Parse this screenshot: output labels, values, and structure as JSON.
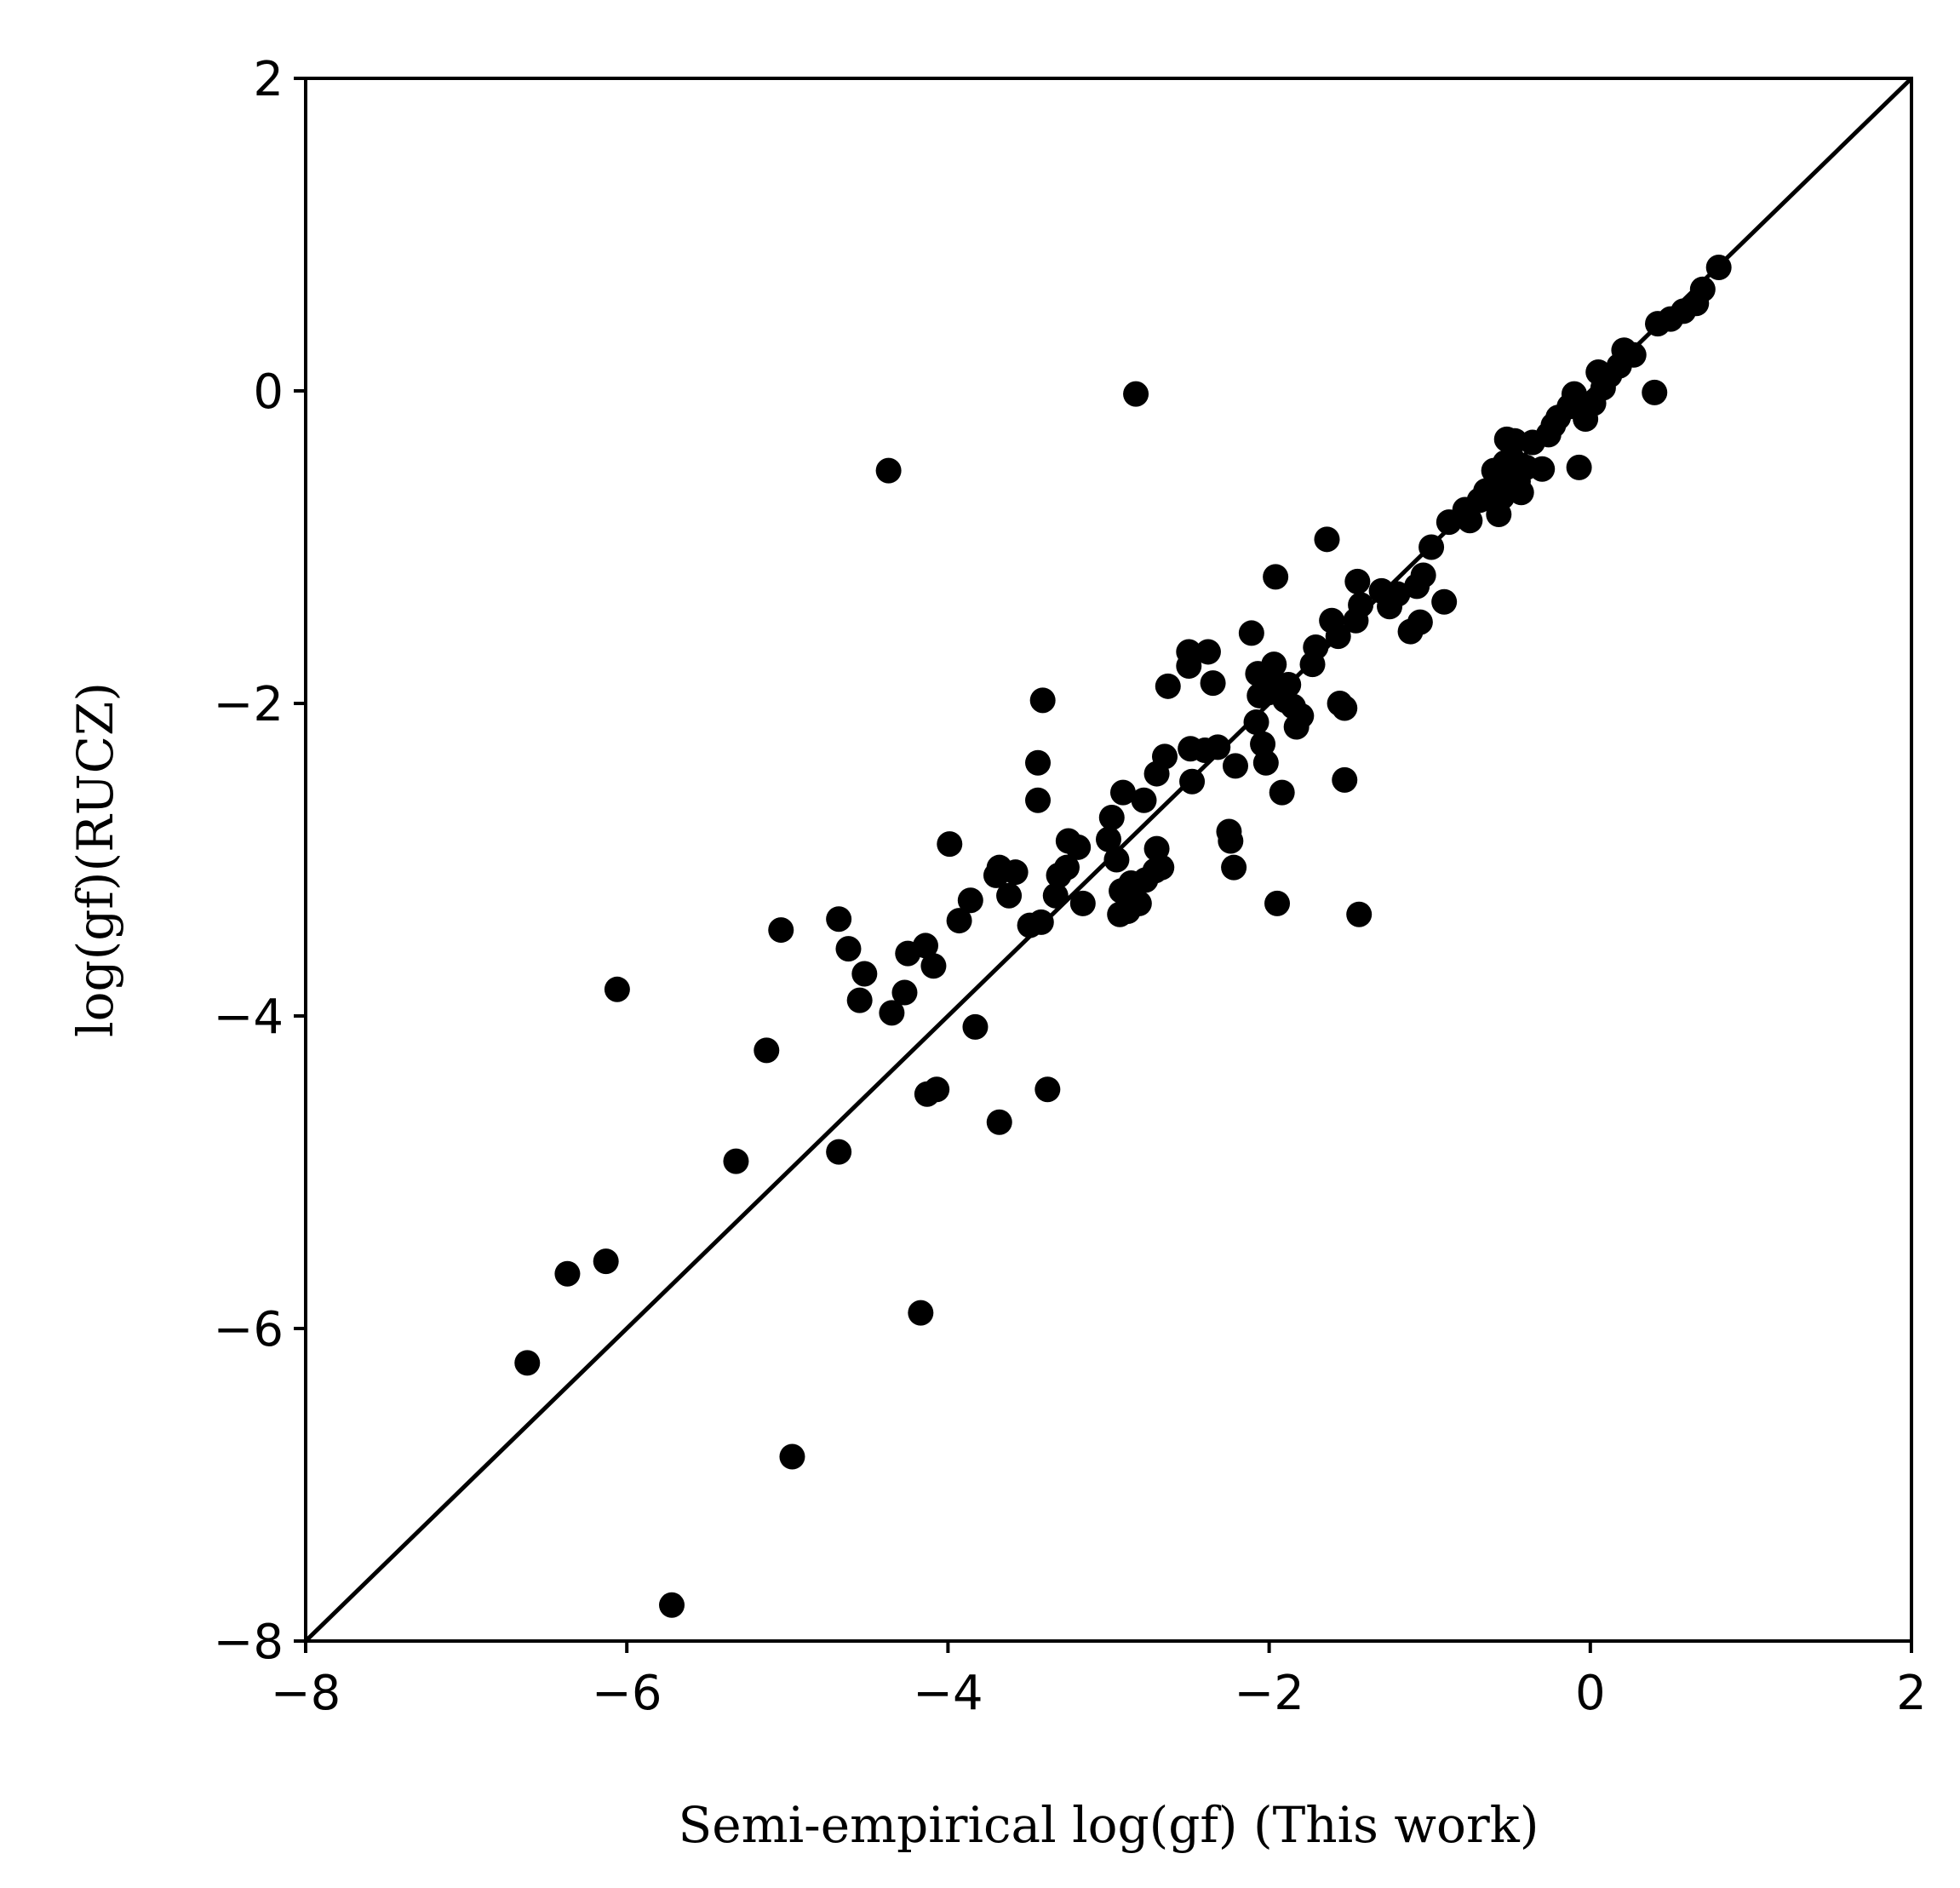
{
  "chart_data": {
    "type": "scatter",
    "title": "",
    "xlabel": "Semi-empirical log(gf) (This work)",
    "ylabel": "log(gf)(RUCZ)",
    "xlim": [
      -8,
      2
    ],
    "ylim": [
      -8,
      2
    ],
    "x_ticks": [
      -8,
      -6,
      -4,
      -2,
      0,
      2
    ],
    "y_ticks": [
      -8,
      -6,
      -4,
      -2,
      0,
      2
    ],
    "x_tick_labels": [
      "−8",
      "−6",
      "−4",
      "−2",
      "0",
      "2"
    ],
    "y_tick_labels": [
      "−8",
      "−6",
      "−4",
      "−2",
      "0",
      "2"
    ],
    "grid": false,
    "marker_color": "#000000",
    "line_color": "#000000",
    "reference_line": {
      "x": [
        -8,
        2
      ],
      "y": [
        -8,
        2
      ]
    },
    "points": [
      [
        -6.62,
        -6.22
      ],
      [
        -6.37,
        -5.65
      ],
      [
        -6.13,
        -5.57
      ],
      [
        -6.06,
        -3.83
      ],
      [
        -5.72,
        -7.77
      ],
      [
        -5.32,
        -4.93
      ],
      [
        -5.13,
        -4.22
      ],
      [
        -5.04,
        -3.45
      ],
      [
        -4.97,
        -6.82
      ],
      [
        -4.68,
        -3.38
      ],
      [
        -4.68,
        -4.87
      ],
      [
        -4.62,
        -3.57
      ],
      [
        -4.55,
        -3.9
      ],
      [
        -4.52,
        -3.73
      ],
      [
        -4.37,
        -0.51
      ],
      [
        -4.35,
        -3.98
      ],
      [
        -4.27,
        -3.85
      ],
      [
        -4.25,
        -3.6
      ],
      [
        -4.17,
        -5.9
      ],
      [
        -4.14,
        -3.55
      ],
      [
        -4.13,
        -4.5
      ],
      [
        -4.09,
        -3.68
      ],
      [
        -4.07,
        -4.47
      ],
      [
        -3.99,
        -2.9
      ],
      [
        -3.93,
        -3.39
      ],
      [
        -3.86,
        -3.26
      ],
      [
        -3.83,
        -4.07
      ],
      [
        -3.7,
        -3.1
      ],
      [
        -3.68,
        -3.05
      ],
      [
        -3.68,
        -4.68
      ],
      [
        -3.62,
        -3.23
      ],
      [
        -3.58,
        -3.08
      ],
      [
        -3.49,
        -3.42
      ],
      [
        -3.44,
        -2.38
      ],
      [
        -3.44,
        -2.62
      ],
      [
        -3.42,
        -3.4
      ],
      [
        -3.41,
        -1.98
      ],
      [
        -3.38,
        -4.47
      ],
      [
        -3.33,
        -3.23
      ],
      [
        -3.31,
        -3.1
      ],
      [
        -3.26,
        -3.05
      ],
      [
        -3.25,
        -2.88
      ],
      [
        -3.19,
        -2.92
      ],
      [
        -3.16,
        -3.28
      ],
      [
        -3.0,
        -2.87
      ],
      [
        -2.98,
        -2.73
      ],
      [
        -2.95,
        -3.0
      ],
      [
        -2.93,
        -3.35
      ],
      [
        -2.92,
        -3.2
      ],
      [
        -2.91,
        -2.57
      ],
      [
        -2.88,
        -3.33
      ],
      [
        -2.86,
        -3.15
      ],
      [
        -2.83,
        -0.02
      ],
      [
        -2.81,
        -3.28
      ],
      [
        -2.78,
        -2.62
      ],
      [
        -2.77,
        -3.13
      ],
      [
        -2.71,
        -3.07
      ],
      [
        -2.7,
        -2.93
      ],
      [
        -2.7,
        -2.45
      ],
      [
        -2.67,
        -3.05
      ],
      [
        -2.65,
        -2.34
      ],
      [
        -2.63,
        -1.89
      ],
      [
        -2.5,
        -1.67
      ],
      [
        -2.5,
        -1.76
      ],
      [
        -2.49,
        -2.29
      ],
      [
        -2.48,
        -2.5
      ],
      [
        -2.4,
        -2.3
      ],
      [
        -2.38,
        -1.67
      ],
      [
        -2.35,
        -1.87
      ],
      [
        -2.32,
        -2.28
      ],
      [
        -2.25,
        -2.82
      ],
      [
        -2.24,
        -2.88
      ],
      [
        -2.22,
        -3.05
      ],
      [
        -2.21,
        -2.4
      ],
      [
        -2.11,
        -1.55
      ],
      [
        -2.08,
        -2.12
      ],
      [
        -2.07,
        -1.81
      ],
      [
        -2.06,
        -1.95
      ],
      [
        -2.04,
        -2.26
      ],
      [
        -2.02,
        -2.38
      ],
      [
        -2.0,
        -1.93
      ],
      [
        -1.98,
        -1.87
      ],
      [
        -1.97,
        -1.75
      ],
      [
        -1.96,
        -1.19
      ],
      [
        -1.95,
        -3.28
      ],
      [
        -1.92,
        -2.57
      ],
      [
        -1.9,
        -1.98
      ],
      [
        -1.88,
        -1.88
      ],
      [
        -1.85,
        -2.02
      ],
      [
        -1.83,
        -2.15
      ],
      [
        -1.8,
        -2.08
      ],
      [
        -1.73,
        -1.75
      ],
      [
        -1.71,
        -1.64
      ],
      [
        -1.64,
        -0.95
      ],
      [
        -1.61,
        -1.47
      ],
      [
        -1.57,
        -1.57
      ],
      [
        -1.56,
        -2.0
      ],
      [
        -1.53,
        -2.03
      ],
      [
        -1.53,
        -2.49
      ],
      [
        -1.46,
        -1.47
      ],
      [
        -1.45,
        -1.22
      ],
      [
        -1.44,
        -3.35
      ],
      [
        -1.43,
        -1.37
      ],
      [
        -1.3,
        -1.28
      ],
      [
        -1.25,
        -1.38
      ],
      [
        -1.2,
        -1.3
      ],
      [
        -1.12,
        -1.54
      ],
      [
        -1.08,
        -1.25
      ],
      [
        -1.06,
        -1.48
      ],
      [
        -1.04,
        -1.18
      ],
      [
        -0.99,
        -1.0
      ],
      [
        -0.91,
        -1.35
      ],
      [
        -0.88,
        -0.84
      ],
      [
        -0.78,
        -0.76
      ],
      [
        -0.75,
        -0.83
      ],
      [
        -0.69,
        -0.7
      ],
      [
        -0.65,
        -0.64
      ],
      [
        -0.6,
        -0.51
      ],
      [
        -0.58,
        -0.58
      ],
      [
        -0.57,
        -0.79
      ],
      [
        -0.55,
        -0.68
      ],
      [
        -0.53,
        -0.46
      ],
      [
        -0.52,
        -0.31
      ],
      [
        -0.5,
        -0.54
      ],
      [
        -0.49,
        -0.43
      ],
      [
        -0.47,
        -0.32
      ],
      [
        -0.45,
        -0.58
      ],
      [
        -0.43,
        -0.65
      ],
      [
        -0.4,
        -0.49
      ],
      [
        -0.36,
        -0.33
      ],
      [
        -0.3,
        -0.5
      ],
      [
        -0.26,
        -0.28
      ],
      [
        -0.23,
        -0.22
      ],
      [
        -0.2,
        -0.17
      ],
      [
        -0.13,
        -0.1
      ],
      [
        -0.1,
        -0.02
      ],
      [
        -0.07,
        -0.49
      ],
      [
        -0.03,
        -0.18
      ],
      [
        0.02,
        -0.08
      ],
      [
        0.05,
        0.12
      ],
      [
        0.08,
        0.02
      ],
      [
        0.12,
        0.1
      ],
      [
        0.18,
        0.16
      ],
      [
        0.21,
        0.26
      ],
      [
        0.27,
        0.23
      ],
      [
        0.4,
        -0.01
      ],
      [
        0.42,
        0.43
      ],
      [
        0.5,
        0.46
      ],
      [
        0.58,
        0.51
      ],
      [
        0.66,
        0.56
      ],
      [
        0.7,
        0.65
      ],
      [
        0.8,
        0.79
      ]
    ]
  }
}
